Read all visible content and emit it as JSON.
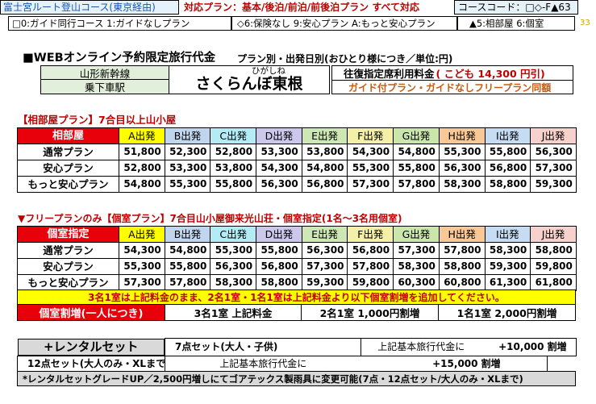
{
  "header": {
    "route_title": "富士宮ルート登山コース(東京経由)",
    "plan_scope": "対応プラン：基本/後泊/前泊/前後泊プラン すべて対応",
    "course_code": "コースコード：□◇-F▲63",
    "page_number": "33"
  },
  "codes": {
    "guide": "□0:ガイド同行コース 1:ガイドなしプラン",
    "insurance": "◇6:保険なし 9:安心プラン A:もっと安心プラン",
    "room": "▲5:相部屋 6:個室"
  },
  "web_title": "■WEBオンライン予約限定旅行代金",
  "web_subtitle": "プラン別・出発日別(おひとり様につき／単位:円)",
  "station": {
    "line": "山形新幹線",
    "note": "乗下車駅",
    "reading": "ひがしね",
    "name": "さくらんぼ東根"
  },
  "fare": {
    "label": "往復指定席利用料金",
    "child": "( こども 14,300 円引)",
    "note": "ガイド付プラン・ガイドなしフリープラン同額"
  },
  "shared": {
    "section_title": "【相部屋プラン】7合目以上山小屋",
    "corner": "相部屋",
    "columns": [
      "A出発",
      "B出発",
      "C出発",
      "D出発",
      "E出発",
      "F出発",
      "G出発",
      "H出発",
      "I出発",
      "J出発"
    ],
    "rows": [
      {
        "label": "通常プラン",
        "values": [
          "51,800",
          "52,300",
          "52,800",
          "53,300",
          "53,800",
          "54,300",
          "54,800",
          "55,300",
          "55,800",
          "56,300"
        ]
      },
      {
        "label": "安心プラン",
        "values": [
          "52,800",
          "53,300",
          "53,800",
          "54,300",
          "54,800",
          "55,300",
          "55,800",
          "56,300",
          "56,800",
          "57,300"
        ]
      },
      {
        "label": "もっと安心プラン",
        "values": [
          "54,800",
          "55,300",
          "55,800",
          "56,300",
          "56,800",
          "57,300",
          "57,800",
          "58,300",
          "58,800",
          "59,300"
        ]
      }
    ]
  },
  "private": {
    "section_title": "▼フリープランのみ【個室プラン】7合目山小屋御来光山荘・個室指定(1名～3名用個室)",
    "corner": "個室指定",
    "columns": [
      "A出発",
      "B出発",
      "C出発",
      "D出発",
      "E出発",
      "F出発",
      "G出発",
      "H出発",
      "I出発",
      "J出発"
    ],
    "rows": [
      {
        "label": "通常プラン",
        "values": [
          "54,300",
          "54,800",
          "55,300",
          "55,800",
          "56,300",
          "56,800",
          "57,300",
          "57,800",
          "58,300",
          "58,800"
        ]
      },
      {
        "label": "安心プラン",
        "values": [
          "55,300",
          "55,800",
          "56,300",
          "56,800",
          "57,300",
          "57,800",
          "58,300",
          "58,800",
          "59,300",
          "59,800"
        ]
      },
      {
        "label": "もっと安心プラン",
        "values": [
          "57,300",
          "57,800",
          "58,300",
          "58,800",
          "59,300",
          "59,800",
          "60,300",
          "60,800",
          "61,300",
          "61,800"
        ]
      }
    ],
    "note": "3名1室は上記料金のまま、2名1室・1名1室は上記料金より以下個室割増を追加してください。",
    "surcharge_label": "個室割増(一人につき)",
    "surcharges": [
      "3名1室 上記料金",
      "2名1室 1,000円割増",
      "1名1室 2,000円割増"
    ]
  },
  "rental": {
    "label": "+レンタルセット",
    "rows": [
      {
        "set": "7点セット(大人・子供)",
        "desc": "上記基本旅行代金に",
        "amount": "+10,000",
        "unit": "割増"
      },
      {
        "set": "12点セット(大人のみ・XLまで)",
        "desc": "上記基本旅行代金に",
        "amount": "+15,000",
        "unit": "割増"
      }
    ],
    "footnote": "*レンタルセットグレードUP／2,500円増しにてゴアテックス製雨具に変更可能(7点・12点セット/大人のみ・XLまで)"
  }
}
